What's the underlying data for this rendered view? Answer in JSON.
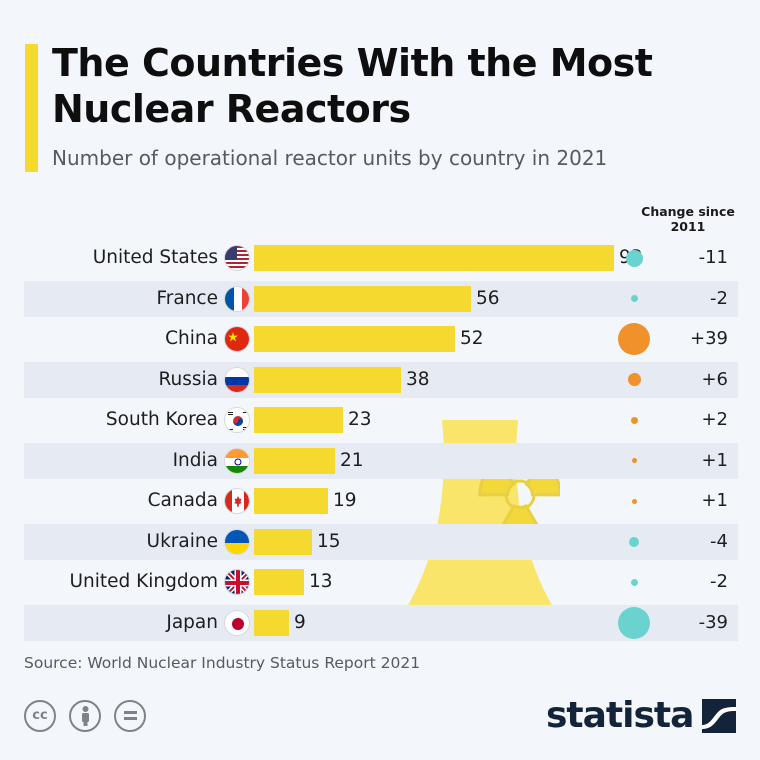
{
  "header": {
    "title": "The Countries With the Most Nuclear Reactors",
    "subtitle": "Number of operational reactor units by country in 2021",
    "change_header": "Change since 2011"
  },
  "chart_data": {
    "type": "bar",
    "orientation": "horizontal",
    "title": "The Countries With the Most Nuclear Reactors",
    "subtitle": "Number of operational reactor units by country in 2021",
    "categories": [
      "United States",
      "France",
      "China",
      "Russia",
      "South Korea",
      "India",
      "Canada",
      "Ukraine",
      "United Kingdom",
      "Japan"
    ],
    "values": [
      93,
      56,
      52,
      38,
      23,
      21,
      19,
      15,
      13,
      9
    ],
    "change_label": "Change since 2011",
    "change_values": [
      -11,
      -2,
      39,
      6,
      2,
      1,
      1,
      -4,
      -2,
      -39
    ],
    "change_labels": [
      "-11",
      "-2",
      "+39",
      "+6",
      "+2",
      "+1",
      "+1",
      "-4",
      "-2",
      "-39"
    ],
    "xlim": [
      0,
      93
    ],
    "bar_color": "#f6d92e",
    "positive_color": "#f0912a",
    "negative_color": "#6bd3cf",
    "grid": false
  },
  "rows": [
    {
      "country": "United States",
      "value": "93",
      "change": "-11",
      "flag": "us-flag-icon"
    },
    {
      "country": "France",
      "value": "56",
      "change": "-2",
      "flag": "fr-flag-icon"
    },
    {
      "country": "China",
      "value": "52",
      "change": "+39",
      "flag": "cn-flag-icon"
    },
    {
      "country": "Russia",
      "value": "38",
      "change": "+6",
      "flag": "ru-flag-icon"
    },
    {
      "country": "South Korea",
      "value": "23",
      "change": "+2",
      "flag": "kr-flag-icon"
    },
    {
      "country": "India",
      "value": "21",
      "change": "+1",
      "flag": "in-flag-icon"
    },
    {
      "country": "Canada",
      "value": "19",
      "change": "+1",
      "flag": "ca-flag-icon"
    },
    {
      "country": "Ukraine",
      "value": "15",
      "change": "-4",
      "flag": "ua-flag-icon"
    },
    {
      "country": "United Kingdom",
      "value": "13",
      "change": "-2",
      "flag": "uk-flag-icon"
    },
    {
      "country": "Japan",
      "value": "9",
      "change": "-39",
      "flag": "jp-flag-icon"
    }
  ],
  "footer": {
    "source": "Source: World Nuclear Industry Status Report 2021",
    "brand": "statista",
    "license_icons": [
      "cc-icon",
      "attribution-icon",
      "no-derivatives-icon"
    ]
  },
  "colors": {
    "accent": "#f6d92e",
    "background": "#f3f6fa",
    "row_shade": "#e6ebf3",
    "brand": "#13233a"
  }
}
